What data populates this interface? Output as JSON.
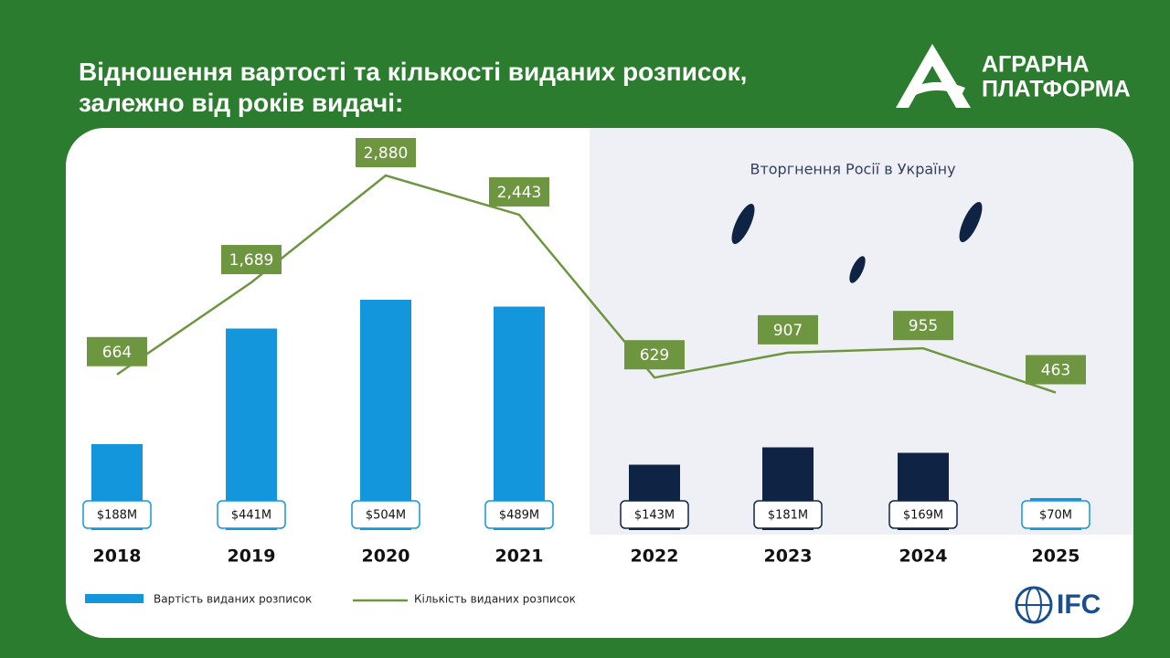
{
  "header": {
    "brand": [
      "АГРАРНА",
      "ПЛАТФОРМА"
    ],
    "partner": "IFC"
  },
  "chart_data": {
    "type": "bar-line",
    "title": "Відношення вартості та кількості виданих розписок, залежно від років видачі:",
    "annotation": "Вторгнення Росії в Україну",
    "categories": [
      "2018",
      "2019",
      "2020",
      "2021",
      "2022",
      "2023",
      "2024",
      "2025"
    ],
    "series": [
      {
        "name": "Вартість виданих розписок",
        "type": "bar",
        "color": "#1496dc",
        "colors": [
          "#1496dc",
          "#1496dc",
          "#1496dc",
          "#1496dc",
          "#0f2444",
          "#0f2444",
          "#0f2444",
          "#1496dc"
        ],
        "values": [
          188,
          441,
          504,
          489,
          143,
          181,
          169,
          70
        ],
        "value_labels": [
          "$188M",
          "$441M",
          "$504M",
          "$489M",
          "$143M",
          "$181M",
          "$169M",
          "$70M"
        ]
      },
      {
        "name": "Кількість виданих розписок",
        "type": "line",
        "color": "#6e9640",
        "values": [
          664,
          1689,
          2880,
          2443,
          629,
          907,
          955,
          463
        ],
        "value_labels": [
          "664",
          "1,689",
          "2,880",
          "2,443",
          "629",
          "907",
          "955",
          "463"
        ]
      }
    ]
  }
}
